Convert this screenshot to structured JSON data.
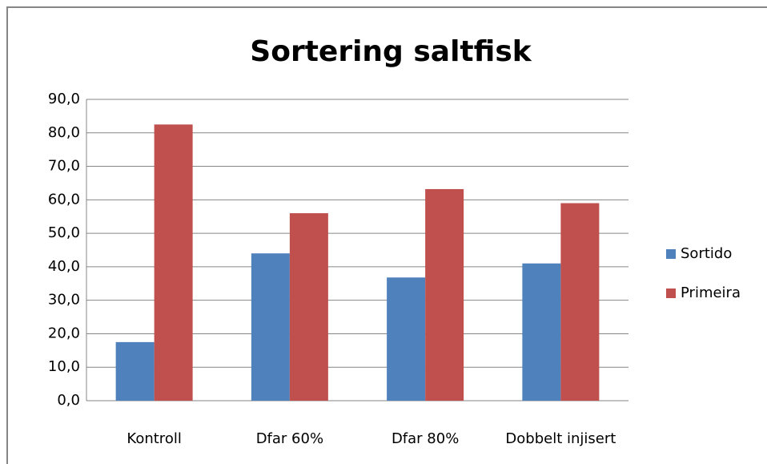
{
  "chart_data": {
    "type": "bar",
    "title": "Sortering saltfisk",
    "categories": [
      "Kontroll",
      "Dfar 60%",
      "Dfar 80%",
      "Dobbelt injisert"
    ],
    "series": [
      {
        "name": "Sortido",
        "color": "#4f81bd",
        "values": [
          17.5,
          44,
          36.8,
          41
        ]
      },
      {
        "name": "Primeira",
        "color": "#c0504d",
        "values": [
          82.5,
          56,
          63.2,
          59
        ]
      }
    ],
    "ylim": [
      0,
      90
    ],
    "yticks": [
      {
        "value": 0,
        "label": "0,0"
      },
      {
        "value": 10,
        "label": "10,0"
      },
      {
        "value": 20,
        "label": "20,0"
      },
      {
        "value": 30,
        "label": "30,0"
      },
      {
        "value": 40,
        "label": "40,0"
      },
      {
        "value": 50,
        "label": "50,0"
      },
      {
        "value": 60,
        "label": "60,0"
      },
      {
        "value": 70,
        "label": "70,0"
      },
      {
        "value": 80,
        "label": "80,0"
      },
      {
        "value": 90,
        "label": "90,0"
      }
    ],
    "grid": true,
    "legend": "right"
  }
}
